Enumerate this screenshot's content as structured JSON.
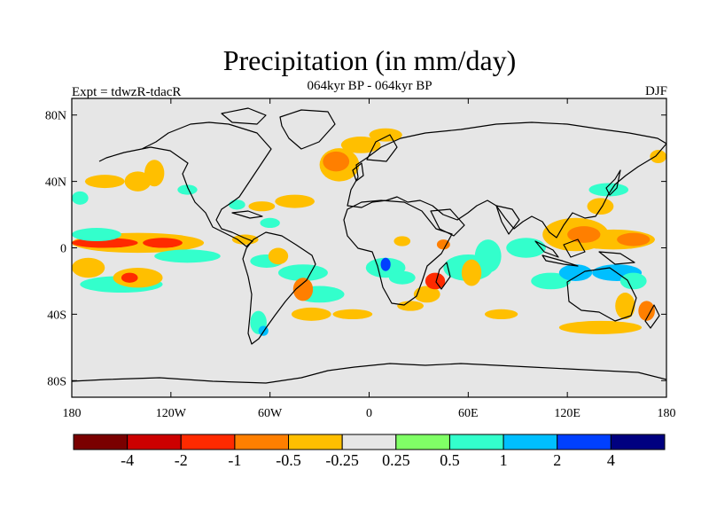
{
  "figure": {
    "title": "Precipitation (in mm/day)",
    "subtitle": "064kyr BP - 064kyr BP",
    "left_label": "Expt = tdwzR-tdacR",
    "right_label": "DJF"
  },
  "map": {
    "projection": "cylindrical-equidistant",
    "lon_range": [
      -180,
      180
    ],
    "lat_range": [
      -90,
      90
    ],
    "background_color": "#e6e6e6",
    "lat_ticks": [
      {
        "value": 80,
        "label": "80N"
      },
      {
        "value": 40,
        "label": "40N"
      },
      {
        "value": 0,
        "label": "0"
      },
      {
        "value": -40,
        "label": "40S"
      },
      {
        "value": -80,
        "label": "80S"
      }
    ],
    "lon_ticks": [
      {
        "value": -180,
        "label": "180"
      },
      {
        "value": -120,
        "label": "120W"
      },
      {
        "value": -60,
        "label": "60W"
      },
      {
        "value": 0,
        "label": "0"
      },
      {
        "value": 60,
        "label": "60E"
      },
      {
        "value": 120,
        "label": "120E"
      },
      {
        "value": 180,
        "label": "180"
      }
    ]
  },
  "colorbar": {
    "colors": [
      "#7a0000",
      "#cc0000",
      "#ff2a00",
      "#ff7f00",
      "#ffbf00",
      "#e6e6e6",
      "#80ff66",
      "#33ffcc",
      "#00bfff",
      "#0040ff",
      "#000080"
    ],
    "labels": [
      "-4",
      "-2",
      "-1",
      "-0.5",
      "-0.25",
      "0.25",
      "0.5",
      "1",
      "2",
      "4"
    ]
  },
  "anomaly_regions": [
    {
      "lon": -160,
      "lat": 3,
      "rx": 20,
      "ry": 3,
      "level": -2
    },
    {
      "lon": -125,
      "lat": 3,
      "rx": 12,
      "ry": 3,
      "level": -2
    },
    {
      "lon": -140,
      "lat": 3,
      "rx": 40,
      "ry": 6,
      "level": -0.5
    },
    {
      "lon": -165,
      "lat": 8,
      "rx": 15,
      "ry": 4,
      "level": 0.5
    },
    {
      "lon": -170,
      "lat": -12,
      "rx": 10,
      "ry": 6,
      "level": -0.5
    },
    {
      "lon": -150,
      "lat": -22,
      "rx": 25,
      "ry": 5,
      "level": 0.5
    },
    {
      "lon": -140,
      "lat": -18,
      "rx": 15,
      "ry": 6,
      "level": -0.5
    },
    {
      "lon": -145,
      "lat": -18,
      "rx": 5,
      "ry": 3,
      "level": -2
    },
    {
      "lon": -110,
      "lat": -5,
      "rx": 20,
      "ry": 4,
      "level": 0.5
    },
    {
      "lon": -160,
      "lat": 40,
      "rx": 12,
      "ry": 4,
      "level": -0.5
    },
    {
      "lon": -140,
      "lat": 40,
      "rx": 8,
      "ry": 6,
      "level": -0.5
    },
    {
      "lon": -130,
      "lat": 45,
      "rx": 6,
      "ry": 8,
      "level": -0.5
    },
    {
      "lon": -110,
      "lat": 35,
      "rx": 6,
      "ry": 3,
      "level": 0.5
    },
    {
      "lon": -175,
      "lat": 30,
      "rx": 5,
      "ry": 4,
      "level": 0.5
    },
    {
      "lon": -80,
      "lat": 26,
      "rx": 5,
      "ry": 3,
      "level": 0.5
    },
    {
      "lon": -65,
      "lat": 25,
      "rx": 8,
      "ry": 3,
      "level": -0.5
    },
    {
      "lon": -45,
      "lat": 28,
      "rx": 12,
      "ry": 4,
      "level": -0.5
    },
    {
      "lon": -20,
      "lat": 52,
      "rx": 8,
      "ry": 6,
      "level": -1
    },
    {
      "lon": -18,
      "lat": 50,
      "rx": 12,
      "ry": 10,
      "level": -0.5
    },
    {
      "lon": -5,
      "lat": 62,
      "rx": 12,
      "ry": 5,
      "level": -0.5
    },
    {
      "lon": 10,
      "lat": 68,
      "rx": 10,
      "ry": 4,
      "level": -0.5
    },
    {
      "lon": -60,
      "lat": 15,
      "rx": 6,
      "ry": 3,
      "level": 0.5
    },
    {
      "lon": -75,
      "lat": 5,
      "rx": 8,
      "ry": 3,
      "level": -0.5
    },
    {
      "lon": -55,
      "lat": -5,
      "rx": 6,
      "ry": 5,
      "level": -0.5
    },
    {
      "lon": -62,
      "lat": -8,
      "rx": 10,
      "ry": 4,
      "level": 0.5
    },
    {
      "lon": -40,
      "lat": -15,
      "rx": 15,
      "ry": 5,
      "level": 0.5
    },
    {
      "lon": -30,
      "lat": -28,
      "rx": 15,
      "ry": 5,
      "level": 0.5
    },
    {
      "lon": -40,
      "lat": -25,
      "rx": 6,
      "ry": 7,
      "level": -1
    },
    {
      "lon": -35,
      "lat": -40,
      "rx": 12,
      "ry": 4,
      "level": -0.5
    },
    {
      "lon": -10,
      "lat": -40,
      "rx": 12,
      "ry": 3,
      "level": -0.5
    },
    {
      "lon": -67,
      "lat": -45,
      "rx": 5,
      "ry": 7,
      "level": 0.5
    },
    {
      "lon": -64,
      "lat": -50,
      "rx": 3,
      "ry": 3,
      "level": 1
    },
    {
      "lon": 10,
      "lat": -12,
      "rx": 12,
      "ry": 6,
      "level": 0.5
    },
    {
      "lon": 10,
      "lat": -10,
      "rx": 3,
      "ry": 4,
      "level": 2
    },
    {
      "lon": 20,
      "lat": -18,
      "rx": 8,
      "ry": 4,
      "level": 0.5
    },
    {
      "lon": 20,
      "lat": 4,
      "rx": 5,
      "ry": 3,
      "level": -0.5
    },
    {
      "lon": 45,
      "lat": 2,
      "rx": 4,
      "ry": 3,
      "level": -1
    },
    {
      "lon": 40,
      "lat": -20,
      "rx": 6,
      "ry": 5,
      "level": -2
    },
    {
      "lon": 35,
      "lat": -28,
      "rx": 8,
      "ry": 5,
      "level": -0.5
    },
    {
      "lon": 25,
      "lat": -35,
      "rx": 8,
      "ry": 3,
      "level": -0.5
    },
    {
      "lon": 60,
      "lat": -12,
      "rx": 15,
      "ry": 8,
      "level": 0.5
    },
    {
      "lon": 62,
      "lat": -15,
      "rx": 6,
      "ry": 8,
      "level": -0.5
    },
    {
      "lon": 72,
      "lat": -5,
      "rx": 8,
      "ry": 10,
      "level": 0.5
    },
    {
      "lon": 80,
      "lat": -40,
      "rx": 10,
      "ry": 3,
      "level": -0.5
    },
    {
      "lon": 95,
      "lat": 0,
      "rx": 12,
      "ry": 6,
      "level": 0.5
    },
    {
      "lon": 110,
      "lat": -20,
      "rx": 12,
      "ry": 5,
      "level": 0.5
    },
    {
      "lon": 125,
      "lat": -15,
      "rx": 10,
      "ry": 5,
      "level": 1
    },
    {
      "lon": 125,
      "lat": 8,
      "rx": 20,
      "ry": 10,
      "level": -0.5
    },
    {
      "lon": 130,
      "lat": 8,
      "rx": 10,
      "ry": 5,
      "level": -1
    },
    {
      "lon": 148,
      "lat": 5,
      "rx": 25,
      "ry": 6,
      "level": -0.5
    },
    {
      "lon": 160,
      "lat": 5,
      "rx": 10,
      "ry": 4,
      "level": -1
    },
    {
      "lon": 150,
      "lat": -15,
      "rx": 15,
      "ry": 5,
      "level": 1
    },
    {
      "lon": 160,
      "lat": -20,
      "rx": 8,
      "ry": 5,
      "level": 0.5
    },
    {
      "lon": 140,
      "lat": -48,
      "rx": 25,
      "ry": 4,
      "level": -0.5
    },
    {
      "lon": 155,
      "lat": -35,
      "rx": 6,
      "ry": 8,
      "level": -0.5
    },
    {
      "lon": 168,
      "lat": -38,
      "rx": 5,
      "ry": 6,
      "level": -1
    },
    {
      "lon": 175,
      "lat": 55,
      "rx": 5,
      "ry": 4,
      "level": -0.5
    },
    {
      "lon": 145,
      "lat": 35,
      "rx": 12,
      "ry": 4,
      "level": 0.5
    },
    {
      "lon": 140,
      "lat": 25,
      "rx": 8,
      "ry": 5,
      "level": -0.5
    }
  ]
}
